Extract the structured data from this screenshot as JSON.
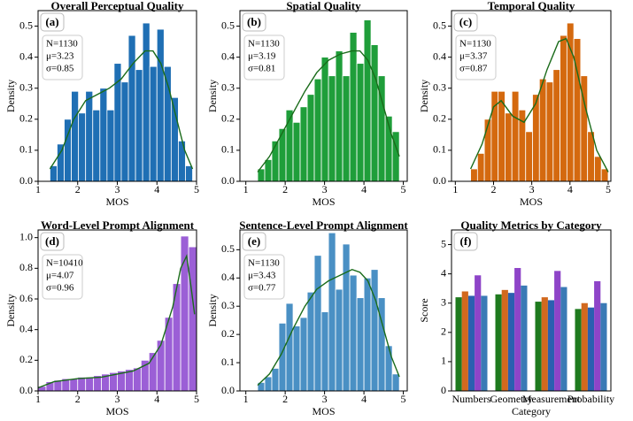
{
  "chart_data": [
    {
      "type": "histogram",
      "panel": "(a)",
      "title": "Overall Perceptual Quality",
      "xlabel": "MOS",
      "ylabel": "Density",
      "color": "#1f6fb4",
      "bins": [
        1.3,
        1.48,
        1.66,
        1.84,
        2.02,
        2.2,
        2.38,
        2.56,
        2.74,
        2.92,
        3.1,
        3.28,
        3.46,
        3.64,
        3.82,
        4.0,
        4.18,
        4.36,
        4.54,
        4.72,
        4.9
      ],
      "values": [
        0.05,
        0.12,
        0.2,
        0.29,
        0.22,
        0.29,
        0.23,
        0.3,
        0.23,
        0.38,
        0.32,
        0.47,
        0.36,
        0.51,
        0.37,
        0.49,
        0.37,
        0.27,
        0.13,
        0.05
      ],
      "line": {
        "color": "#1a6b1a",
        "x": [
          1.3,
          1.6,
          1.9,
          2.2,
          2.5,
          2.8,
          3.1,
          3.4,
          3.7,
          3.9,
          4.1,
          4.3,
          4.5,
          4.7,
          4.9
        ],
        "values": [
          0.04,
          0.1,
          0.2,
          0.26,
          0.28,
          0.3,
          0.33,
          0.38,
          0.42,
          0.42,
          0.38,
          0.3,
          0.2,
          0.1,
          0.04
        ]
      },
      "stats": [
        "N=1130",
        "μ=3.23",
        "σ=0.85"
      ],
      "xlim": [
        1,
        5
      ],
      "xticks": [
        1,
        2,
        3,
        4,
        5
      ],
      "ylim": [
        0,
        0.55
      ],
      "yticks": [
        {
          "value": 0,
          "label": "0.0"
        },
        {
          "value": 0.1,
          "label": "0.1"
        },
        {
          "value": 0.2,
          "label": "0.2"
        },
        {
          "value": 0.3,
          "label": "0.3"
        },
        {
          "value": 0.4,
          "label": "0.4"
        },
        {
          "value": 0.5,
          "label": "0.5"
        }
      ]
    },
    {
      "type": "histogram",
      "panel": "(b)",
      "title": "Spatial Quality",
      "xlabel": "MOS",
      "ylabel": "Density",
      "color": "#1f9e3a",
      "bins": [
        1.3,
        1.48,
        1.66,
        1.84,
        2.02,
        2.2,
        2.38,
        2.56,
        2.74,
        2.92,
        3.1,
        3.28,
        3.46,
        3.64,
        3.82,
        4.0,
        4.18,
        4.36,
        4.54,
        4.72,
        4.9
      ],
      "values": [
        0.04,
        0.07,
        0.13,
        0.17,
        0.23,
        0.19,
        0.24,
        0.28,
        0.33,
        0.4,
        0.34,
        0.42,
        0.34,
        0.48,
        0.38,
        0.52,
        0.44,
        0.34,
        0.21,
        0.16
      ],
      "line": {
        "color": "#1a6b1a",
        "x": [
          1.3,
          1.6,
          1.9,
          2.2,
          2.5,
          2.8,
          3.1,
          3.4,
          3.7,
          3.9,
          4.1,
          4.3,
          4.5,
          4.7,
          4.9
        ],
        "values": [
          0.03,
          0.08,
          0.15,
          0.22,
          0.29,
          0.35,
          0.39,
          0.41,
          0.42,
          0.42,
          0.39,
          0.33,
          0.24,
          0.15,
          0.08
        ]
      },
      "stats": [
        "N=1130",
        "μ=3.19",
        "σ=0.81"
      ],
      "xlim": [
        0.85,
        5.1
      ],
      "xticks": [
        1,
        2,
        3,
        4,
        5
      ],
      "ylim": [
        0,
        0.55
      ],
      "yticks": [
        {
          "value": 0,
          "label": "0.0"
        },
        {
          "value": 0.1,
          "label": "0.1"
        },
        {
          "value": 0.2,
          "label": "0.2"
        },
        {
          "value": 0.3,
          "label": "0.3"
        },
        {
          "value": 0.4,
          "label": "0.4"
        },
        {
          "value": 0.5,
          "label": "0.5"
        }
      ]
    },
    {
      "type": "histogram",
      "panel": "(c)",
      "title": "Temporal Quality",
      "xlabel": "MOS",
      "ylabel": "Density",
      "color": "#d4690f",
      "bins": [
        1.4,
        1.58,
        1.76,
        1.94,
        2.12,
        2.3,
        2.48,
        2.66,
        2.84,
        3.02,
        3.2,
        3.38,
        3.56,
        3.74,
        3.92,
        4.1,
        4.28,
        4.46,
        4.64,
        4.82,
        5.0
      ],
      "values": [
        0.04,
        0.09,
        0.2,
        0.29,
        0.29,
        0.22,
        0.29,
        0.23,
        0.16,
        0.28,
        0.33,
        0.32,
        0.36,
        0.47,
        0.51,
        0.46,
        0.34,
        0.16,
        0.08,
        0.04
      ],
      "line": {
        "color": "#1a6b1a",
        "x": [
          1.4,
          1.7,
          2.0,
          2.2,
          2.5,
          2.8,
          3.1,
          3.4,
          3.7,
          3.9,
          4.1,
          4.4,
          4.7,
          5.0
        ],
        "values": [
          0.04,
          0.12,
          0.24,
          0.26,
          0.21,
          0.19,
          0.25,
          0.36,
          0.45,
          0.46,
          0.4,
          0.24,
          0.1,
          0.03
        ]
      },
      "stats": [
        "N=1130",
        "μ=3.37",
        "σ=0.87"
      ],
      "xlim": [
        0.9,
        5.07
      ],
      "xticks": [
        1,
        2,
        3,
        4,
        5
      ],
      "ylim": [
        0,
        0.55
      ],
      "yticks": [
        {
          "value": 0,
          "label": "0.0"
        },
        {
          "value": 0.1,
          "label": "0.1"
        },
        {
          "value": 0.2,
          "label": "0.2"
        },
        {
          "value": 0.3,
          "label": "0.3"
        },
        {
          "value": 0.4,
          "label": "0.4"
        },
        {
          "value": 0.5,
          "label": "0.5"
        }
      ]
    },
    {
      "type": "histogram",
      "panel": "(d)",
      "title": "Word-Level Prompt Alignment",
      "xlabel": "MOS",
      "ylabel": "Density",
      "color": "#9b5fd6",
      "bins": [
        1.0,
        1.2,
        1.4,
        1.6,
        1.8,
        2.0,
        2.2,
        2.4,
        2.6,
        2.8,
        3.0,
        3.2,
        3.4,
        3.6,
        3.8,
        4.0,
        4.2,
        4.4,
        4.6,
        4.8,
        5.0
      ],
      "values": [
        0.03,
        0.06,
        0.07,
        0.08,
        0.08,
        0.09,
        0.09,
        0.1,
        0.11,
        0.12,
        0.13,
        0.14,
        0.15,
        0.2,
        0.25,
        0.33,
        0.48,
        0.7,
        1.01,
        0.94
      ],
      "line": {
        "color": "#1a6b1a",
        "x": [
          1.0,
          1.4,
          2.0,
          2.6,
          3.0,
          3.4,
          3.8,
          4.1,
          4.4,
          4.6,
          4.75,
          4.85,
          4.95
        ],
        "values": [
          0.02,
          0.06,
          0.08,
          0.09,
          0.11,
          0.13,
          0.18,
          0.3,
          0.55,
          0.8,
          0.88,
          0.7,
          0.5
        ]
      },
      "stats": [
        "N=10410",
        "μ=4.07",
        "σ=0.96"
      ],
      "xlim": [
        1,
        5
      ],
      "xticks": [
        1,
        2,
        3,
        4,
        5
      ],
      "ylim": [
        0,
        1.05
      ],
      "yticks": [
        {
          "value": 0,
          "label": "0.0"
        },
        {
          "value": 0.2,
          "label": "0.2"
        },
        {
          "value": 0.4,
          "label": "0.4"
        },
        {
          "value": 0.6,
          "label": "0.6"
        },
        {
          "value": 0.8,
          "label": "0.8"
        },
        {
          "value": 1,
          "label": "1.0"
        }
      ]
    },
    {
      "type": "histogram",
      "panel": "(e)",
      "title": "Sentence-Level Prompt Alignment",
      "xlabel": "MOS",
      "ylabel": "Density",
      "color": "#4a90c4",
      "bins": [
        1.3,
        1.48,
        1.66,
        1.84,
        2.02,
        2.2,
        2.38,
        2.56,
        2.74,
        2.92,
        3.1,
        3.28,
        3.46,
        3.64,
        3.82,
        4.0,
        4.18,
        4.36,
        4.54,
        4.72,
        4.9
      ],
      "values": [
        0.03,
        0.05,
        0.08,
        0.24,
        0.31,
        0.23,
        0.26,
        0.35,
        0.48,
        0.28,
        0.56,
        0.36,
        0.52,
        0.41,
        0.33,
        0.4,
        0.43,
        0.33,
        0.16,
        0.06
      ],
      "line": {
        "color": "#1a6b1a",
        "x": [
          1.3,
          1.6,
          1.9,
          2.2,
          2.5,
          2.8,
          3.1,
          3.4,
          3.7,
          3.9,
          4.1,
          4.3,
          4.5,
          4.7,
          4.9
        ],
        "values": [
          0.02,
          0.06,
          0.13,
          0.22,
          0.3,
          0.36,
          0.39,
          0.41,
          0.43,
          0.42,
          0.39,
          0.32,
          0.22,
          0.12,
          0.05
        ]
      },
      "stats": [
        "N=1130",
        "μ=3.43",
        "σ=0.77"
      ],
      "xlim": [
        0.85,
        5.1
      ],
      "xticks": [
        1,
        2,
        3,
        4,
        5
      ],
      "ylim": [
        0,
        0.57
      ],
      "yticks": [
        {
          "value": 0,
          "label": "0.0"
        },
        {
          "value": 0.1,
          "label": "0.1"
        },
        {
          "value": 0.2,
          "label": "0.2"
        },
        {
          "value": 0.3,
          "label": "0.3"
        },
        {
          "value": 0.4,
          "label": "0.4"
        },
        {
          "value": 0.5,
          "label": "0.5"
        }
      ]
    },
    {
      "type": "bar",
      "panel": "(f)",
      "title": "Quality Metrics by Category",
      "xlabel": "Category",
      "ylabel": "Score",
      "categories": [
        "Numbers",
        "Geometry",
        "Measurement",
        "Probability"
      ],
      "series": [
        {
          "color": "#1e7a1e",
          "values": [
            3.2,
            3.3,
            3.05,
            2.8
          ]
        },
        {
          "color": "#d2691e",
          "values": [
            3.4,
            3.45,
            3.2,
            3.0
          ]
        },
        {
          "color": "#2b5fb0",
          "values": [
            3.25,
            3.35,
            3.1,
            2.85
          ]
        },
        {
          "color": "#8e44c8",
          "values": [
            3.95,
            4.2,
            4.1,
            3.75
          ]
        },
        {
          "color": "#3a7ab5",
          "values": [
            3.25,
            3.6,
            3.55,
            3.0
          ]
        }
      ],
      "ylim": [
        0,
        5.5
      ],
      "yticks": [
        0,
        1,
        2,
        3,
        4,
        5
      ]
    }
  ]
}
